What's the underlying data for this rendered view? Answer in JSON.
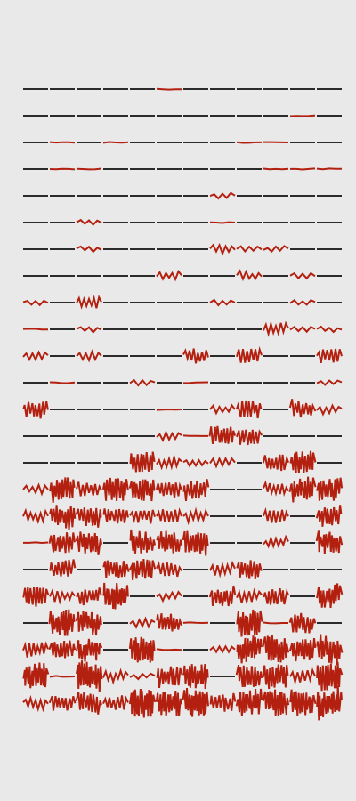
{
  "colors": {
    "background": "#e9e9e9",
    "calm_line": "#2b2b2b",
    "disturbed_line": "#b3200f"
  },
  "grid": {
    "rows": 24,
    "columns": 12,
    "disorder_levels": [
      [
        0,
        0,
        0,
        0,
        0,
        1,
        0,
        0,
        0,
        0,
        0,
        0
      ],
      [
        0,
        0,
        0,
        0,
        0,
        0,
        0,
        0,
        0,
        0,
        1,
        0
      ],
      [
        0,
        1,
        0,
        1,
        0,
        0,
        0,
        0,
        1,
        1,
        0,
        0
      ],
      [
        0,
        1,
        1,
        0,
        0,
        0,
        0,
        0,
        0,
        1,
        1,
        1
      ],
      [
        0,
        0,
        0,
        0,
        0,
        0,
        0,
        2,
        0,
        0,
        0,
        0
      ],
      [
        0,
        0,
        2,
        0,
        0,
        0,
        0,
        1,
        0,
        0,
        0,
        0
      ],
      [
        0,
        0,
        2,
        0,
        0,
        0,
        0,
        3,
        2,
        2,
        0,
        0
      ],
      [
        0,
        0,
        0,
        0,
        0,
        3,
        0,
        0,
        3,
        0,
        2,
        0
      ],
      [
        2,
        0,
        4,
        0,
        0,
        0,
        0,
        2,
        0,
        0,
        2,
        0
      ],
      [
        1,
        0,
        2,
        0,
        0,
        0,
        0,
        0,
        0,
        4,
        2,
        2
      ],
      [
        3,
        0,
        3,
        0,
        0,
        0,
        5,
        0,
        5,
        0,
        0,
        5
      ],
      [
        0,
        1,
        0,
        0,
        2,
        0,
        1,
        0,
        0,
        0,
        0,
        2
      ],
      [
        6,
        0,
        0,
        0,
        0,
        1,
        0,
        3,
        6,
        0,
        6,
        3
      ],
      [
        0,
        0,
        0,
        0,
        0,
        3,
        1,
        7,
        6,
        0,
        0,
        0
      ],
      [
        0,
        0,
        0,
        0,
        7,
        4,
        3,
        3,
        0,
        6,
        8,
        0
      ],
      [
        3,
        8,
        5,
        8,
        8,
        6,
        7,
        0,
        0,
        5,
        8,
        8
      ],
      [
        4,
        8,
        7,
        6,
        5,
        5,
        4,
        0,
        0,
        5,
        0,
        7
      ],
      [
        1,
        7,
        8,
        0,
        8,
        8,
        8,
        0,
        0,
        4,
        0,
        8
      ],
      [
        0,
        6,
        0,
        7,
        7,
        5,
        0,
        4,
        7,
        0,
        0,
        0
      ],
      [
        7,
        4,
        6,
        9,
        0,
        3,
        0,
        7,
        4,
        6,
        0,
        8
      ],
      [
        0,
        9,
        8,
        0,
        3,
        7,
        1,
        0,
        9,
        1,
        7,
        0
      ],
      [
        5,
        7,
        8,
        0,
        9,
        1,
        0,
        3,
        9,
        9,
        8,
        9
      ],
      [
        9,
        1,
        10,
        4,
        2,
        7,
        9,
        0,
        8,
        8,
        4,
        9
      ],
      [
        4,
        6,
        7,
        5,
        10,
        9,
        10,
        6,
        9,
        9,
        9,
        10
      ]
    ]
  }
}
